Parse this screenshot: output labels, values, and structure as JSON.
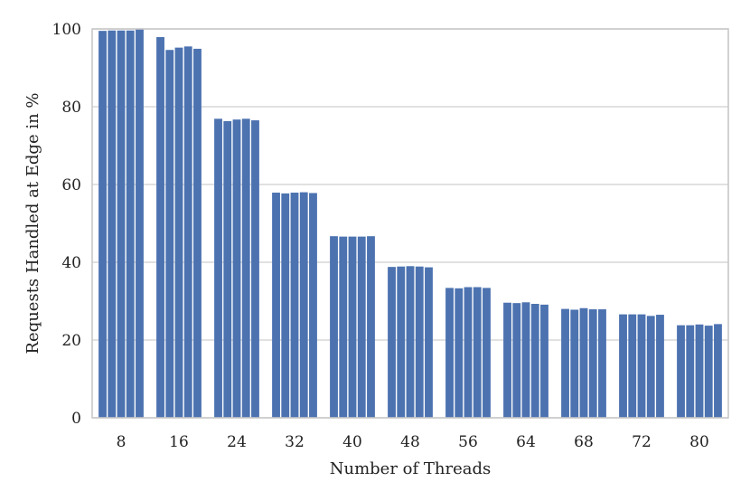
{
  "chart_data": {
    "type": "bar",
    "title": "",
    "xlabel": "Number of Threads",
    "ylabel": "Requests Handled at Edge in %",
    "categories": [
      "8",
      "16",
      "24",
      "32",
      "40",
      "48",
      "56",
      "64",
      "68",
      "72",
      "80"
    ],
    "runs_per_category": 5,
    "values": [
      [
        99.5,
        99.6,
        99.6,
        99.6,
        99.9
      ],
      [
        97.9,
        94.6,
        95.2,
        95.5,
        94.9
      ],
      [
        76.9,
        76.3,
        76.7,
        76.9,
        76.5
      ],
      [
        57.9,
        57.7,
        57.9,
        58.0,
        57.8
      ],
      [
        46.7,
        46.6,
        46.6,
        46.6,
        46.7
      ],
      [
        38.8,
        38.9,
        39.0,
        38.9,
        38.7
      ],
      [
        33.4,
        33.3,
        33.6,
        33.6,
        33.4
      ],
      [
        29.6,
        29.5,
        29.7,
        29.3,
        29.1
      ],
      [
        28.0,
        27.8,
        28.2,
        27.9,
        27.9
      ],
      [
        26.6,
        26.6,
        26.6,
        26.2,
        26.5
      ],
      [
        23.8,
        23.8,
        24.0,
        23.7,
        24.1
      ]
    ],
    "ylim": [
      0,
      100
    ],
    "yticks": [
      0,
      20,
      40,
      60,
      80,
      100
    ],
    "grid": "horizontal",
    "bar_color": "#4c72b0",
    "grid_color": "#cfcfcf",
    "frame_color": "#c8c8c8"
  }
}
